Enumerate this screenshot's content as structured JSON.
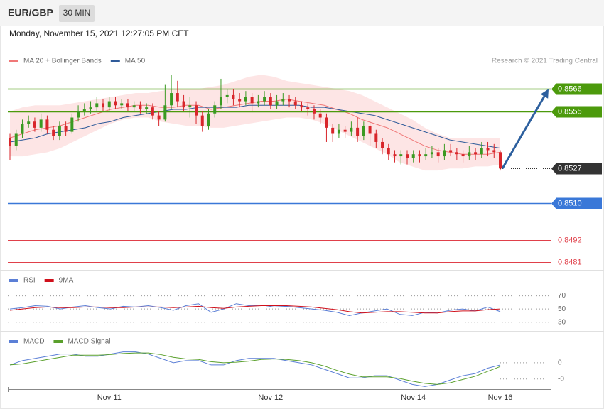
{
  "header": {
    "symbol": "EUR/GBP",
    "interval": "30 MIN",
    "datetime": "Monday, November 15, 2021 12:27:05 PM CET"
  },
  "chart_data": {
    "type": "candlestick",
    "credit": "Research © 2021 Trading Central",
    "up_color": "#3a9a22",
    "down_color": "#d8262b",
    "categories": [
      null,
      null,
      null,
      null,
      null,
      null,
      null,
      null,
      null,
      null,
      null,
      null,
      null,
      null,
      null,
      null,
      "Nov 11",
      null,
      null,
      null,
      null,
      null,
      null,
      null,
      null,
      null,
      null,
      null,
      null,
      null,
      null,
      null,
      null,
      null,
      null,
      null,
      null,
      null,
      null,
      null,
      null,
      null,
      "Nov 12",
      null,
      null,
      null,
      null,
      null,
      null,
      null,
      null,
      null,
      null,
      null,
      null,
      null,
      null,
      null,
      null,
      null,
      null,
      null,
      null,
      null,
      null,
      "Nov 14",
      null,
      null,
      null,
      null,
      null,
      null,
      null,
      null,
      null,
      null,
      null,
      null,
      null,
      "Nov 16"
    ],
    "open": [
      0.8542,
      0.8538,
      0.8544,
      0.8549,
      0.855,
      0.8547,
      0.8551,
      0.8546,
      0.8543,
      0.8548,
      0.8545,
      0.8552,
      0.8555,
      0.8556,
      0.8557,
      0.8559,
      0.8557,
      0.856,
      0.8558,
      0.8559,
      0.8557,
      0.8558,
      0.8556,
      0.8557,
      0.8553,
      0.8551,
      0.8558,
      0.8564,
      0.856,
      0.8557,
      0.8558,
      0.8553,
      0.8548,
      0.8554,
      0.8558,
      0.8562,
      0.8563,
      0.8561,
      0.856,
      0.8562,
      0.8559,
      0.856,
      0.8562,
      0.8558,
      0.856,
      0.8561,
      0.856,
      0.8558,
      0.8557,
      0.8556,
      0.8554,
      0.8552,
      0.8547,
      0.8544,
      0.8546,
      0.8545,
      0.8547,
      0.8543,
      0.8548,
      0.8544,
      0.854,
      0.8537,
      0.8534,
      0.8533,
      0.8534,
      0.8532,
      0.8534,
      0.8533,
      0.8534,
      0.8535,
      0.8533,
      0.8536,
      0.8535,
      0.8534,
      0.8533,
      0.8535,
      0.8534,
      0.8537,
      0.8536,
      0.8535
    ],
    "high": [
      0.8544,
      0.8546,
      0.8551,
      0.8553,
      0.8552,
      0.8554,
      0.8553,
      0.8548,
      0.855,
      0.855,
      0.8554,
      0.8558,
      0.8559,
      0.856,
      0.8562,
      0.8561,
      0.8562,
      0.8562,
      0.8561,
      0.8561,
      0.856,
      0.856,
      0.8559,
      0.8559,
      0.8555,
      0.8568,
      0.8573,
      0.857,
      0.8563,
      0.8562,
      0.856,
      0.8555,
      0.8556,
      0.856,
      0.8571,
      0.8566,
      0.8566,
      0.8564,
      0.8565,
      0.8564,
      0.8563,
      0.8565,
      0.8564,
      0.8563,
      0.8564,
      0.8563,
      0.8562,
      0.856,
      0.8559,
      0.8558,
      0.8556,
      0.8554,
      0.8549,
      0.8549,
      0.8548,
      0.855,
      0.8552,
      0.855,
      0.855,
      0.8546,
      0.8542,
      0.8539,
      0.8536,
      0.8536,
      0.8536,
      0.8536,
      0.8536,
      0.8537,
      0.8538,
      0.8537,
      0.8539,
      0.8539,
      0.8537,
      0.8536,
      0.8538,
      0.8537,
      0.854,
      0.854,
      0.8539,
      0.8536
    ],
    "low": [
      0.8531,
      0.8536,
      0.8542,
      0.8547,
      0.8545,
      0.8545,
      0.8544,
      0.8541,
      0.8541,
      0.8543,
      0.8544,
      0.855,
      0.8553,
      0.8554,
      0.8555,
      0.8555,
      0.8555,
      0.8556,
      0.8556,
      0.8555,
      0.8555,
      0.8554,
      0.8554,
      0.8551,
      0.8548,
      0.855,
      0.8556,
      0.8557,
      0.8555,
      0.8552,
      0.8549,
      0.8545,
      0.8546,
      0.8552,
      0.8556,
      0.8559,
      0.8558,
      0.8557,
      0.8558,
      0.8555,
      0.8557,
      0.8558,
      0.8556,
      0.8556,
      0.8558,
      0.8557,
      0.8556,
      0.8555,
      0.8553,
      0.8551,
      0.8549,
      0.854,
      0.854,
      0.8542,
      0.8542,
      0.8543,
      0.854,
      0.8541,
      0.8538,
      0.8537,
      0.8534,
      0.8531,
      0.853,
      0.8529,
      0.8529,
      0.853,
      0.853,
      0.8531,
      0.8532,
      0.853,
      0.8531,
      0.8533,
      0.8531,
      0.853,
      0.8531,
      0.8531,
      0.8532,
      0.8533,
      0.8532,
      0.8526
    ],
    "close": [
      0.8538,
      0.8544,
      0.8549,
      0.855,
      0.8547,
      0.8551,
      0.8546,
      0.8543,
      0.8548,
      0.8545,
      0.8552,
      0.8555,
      0.8556,
      0.8557,
      0.8559,
      0.8557,
      0.856,
      0.8558,
      0.8559,
      0.8557,
      0.8558,
      0.8556,
      0.8557,
      0.8553,
      0.8551,
      0.8558,
      0.8564,
      0.856,
      0.8557,
      0.8558,
      0.8553,
      0.8548,
      0.8554,
      0.8558,
      0.8562,
      0.8563,
      0.8561,
      0.856,
      0.8562,
      0.8559,
      0.856,
      0.8562,
      0.8558,
      0.856,
      0.8561,
      0.856,
      0.8558,
      0.8557,
      0.8556,
      0.8554,
      0.8552,
      0.8547,
      0.8544,
      0.8546,
      0.8545,
      0.8547,
      0.8543,
      0.8548,
      0.8544,
      0.854,
      0.8537,
      0.8534,
      0.8533,
      0.8534,
      0.8532,
      0.8534,
      0.8533,
      0.8534,
      0.8535,
      0.8533,
      0.8536,
      0.8535,
      0.8534,
      0.8533,
      0.8535,
      0.8534,
      0.8537,
      0.8536,
      0.8535,
      0.8527
    ],
    "bollinger": {
      "name": "MA 20 + Bollinger Bands",
      "color": "#f07878",
      "fill": "#fcdcdc",
      "ma": [
        0.8542,
        0.8544,
        0.8546,
        0.8547,
        0.8548,
        0.855,
        0.8552,
        0.8554,
        0.8556,
        0.8557,
        0.8558,
        0.8558,
        0.8557,
        0.8557,
        0.8558,
        0.8558,
        0.8556,
        0.8557,
        0.8558,
        0.8559,
        0.856,
        0.856,
        0.8561,
        0.856,
        0.8559,
        0.8558,
        0.8556,
        0.8554,
        0.8551,
        0.8549,
        0.8547,
        0.8544,
        0.8541,
        0.8538,
        0.8536,
        0.8535,
        0.8534,
        0.8534,
        0.8534,
        0.8535
      ],
      "upper": [
        0.8555,
        0.8557,
        0.8558,
        0.8558,
        0.8558,
        0.8559,
        0.856,
        0.8561,
        0.8562,
        0.8563,
        0.8564,
        0.8564,
        0.8565,
        0.8566,
        0.8566,
        0.8566,
        0.8567,
        0.8568,
        0.857,
        0.8572,
        0.8573,
        0.8572,
        0.857,
        0.8569,
        0.8568,
        0.8567,
        0.8566,
        0.8565,
        0.8563,
        0.856,
        0.8557,
        0.8554,
        0.8551,
        0.8547,
        0.8544,
        0.8542,
        0.8542,
        0.8542,
        0.8542,
        0.8542
      ],
      "lower": [
        0.8533,
        0.8533,
        0.8534,
        0.8535,
        0.8537,
        0.854,
        0.8543,
        0.8546,
        0.8549,
        0.8551,
        0.8552,
        0.8552,
        0.855,
        0.8549,
        0.8548,
        0.8548,
        0.8547,
        0.8547,
        0.8548,
        0.8549,
        0.855,
        0.8551,
        0.8552,
        0.8552,
        0.8551,
        0.8549,
        0.8546,
        0.8543,
        0.854,
        0.8537,
        0.8534,
        0.853,
        0.8528,
        0.8526,
        0.8526,
        0.8527,
        0.8527,
        0.8528,
        0.8528,
        0.8529
      ]
    },
    "ma50": {
      "name": "MA 50",
      "color": "#2f5b9a",
      "values": [
        0.854,
        0.8541,
        0.8542,
        0.8544,
        0.8545,
        0.8546,
        0.8547,
        0.8549,
        0.855,
        0.8552,
        0.8553,
        0.8554,
        0.8555,
        0.8556,
        0.8556,
        0.8557,
        0.8557,
        0.8557,
        0.8557,
        0.8558,
        0.8558,
        0.8558,
        0.8558,
        0.8558,
        0.8557,
        0.8557,
        0.8556,
        0.8555,
        0.8554,
        0.8553,
        0.8551,
        0.8549,
        0.8547,
        0.8545,
        0.8543,
        0.8541,
        0.854,
        0.8539,
        0.8538,
        0.8537
      ]
    },
    "ylim": [
      0.8478,
      0.8587
    ],
    "levels": [
      {
        "value": 0.8566,
        "color": "#4c9a0c",
        "boxed": true
      },
      {
        "value": 0.8555,
        "color": "#4c9a0c",
        "boxed": true
      },
      {
        "value": 0.8527,
        "color": "#333333",
        "boxed": true
      },
      {
        "value": 0.851,
        "label": "0.8510",
        "color": "#3a78d8",
        "boxed": true
      },
      {
        "value": 0.8492,
        "color": "#e0404a",
        "boxed": false
      },
      {
        "value": 0.8481,
        "color": "#e0404a",
        "boxed": false
      }
    ],
    "forecast_color": "#2c5f9e",
    "rsi": {
      "type": "line",
      "ylim": [
        20,
        90
      ],
      "yticks": [
        70,
        50,
        30
      ],
      "series": [
        {
          "name": "RSI",
          "color": "#5b7fd6",
          "values": [
            50,
            52,
            55,
            54,
            50,
            53,
            55,
            52,
            50,
            54,
            53,
            55,
            52,
            48,
            55,
            58,
            45,
            50,
            58,
            55,
            56,
            53,
            54,
            52,
            50,
            48,
            45,
            40,
            44,
            47,
            50,
            42,
            40,
            45,
            44,
            48,
            50,
            47,
            53,
            46
          ]
        },
        {
          "name": "9MA",
          "color": "#d0101b",
          "values": [
            48,
            50,
            52,
            53,
            52,
            52,
            53,
            53,
            52,
            52,
            53,
            53,
            53,
            52,
            53,
            54,
            52,
            51,
            53,
            54,
            55,
            55,
            55,
            54,
            53,
            51,
            49,
            46,
            44,
            45,
            46,
            46,
            45,
            44,
            44,
            46,
            47,
            47,
            49,
            50
          ]
        }
      ]
    },
    "macd": {
      "type": "line",
      "ylim": [
        -0.0005,
        0.0003
      ],
      "yticks": [
        0,
        {
          "value": -0.0003,
          "label": "-0"
        }
      ],
      "series": [
        {
          "name": "MACD",
          "color": "#5b7fd6",
          "values": [
            -4e-05,
            4e-05,
            8e-05,
            0.00012,
            0.00016,
            0.00016,
            0.00012,
            0.00012,
            0.00016,
            0.0002,
            0.0002,
            0.00016,
            8e-05,
            0,
            4e-05,
            4e-05,
            -4e-05,
            -4e-05,
            4e-05,
            8e-05,
            8e-05,
            8e-05,
            4e-05,
            0,
            -4e-05,
            -0.00012,
            -0.0002,
            -0.00028,
            -0.00028,
            -0.00024,
            -0.00024,
            -0.00032,
            -0.0004,
            -0.00044,
            -0.0004,
            -0.00032,
            -0.00024,
            -0.0002,
            -0.0001,
            -4e-05
          ]
        },
        {
          "name": "MACD Signal",
          "color": "#5aa02c",
          "values": [
            -4e-05,
            -2e-05,
            2e-05,
            6e-05,
            0.0001,
            0.00014,
            0.00014,
            0.00014,
            0.00015,
            0.00017,
            0.00018,
            0.00018,
            0.00015,
            0.0001,
            7e-05,
            6e-05,
            2e-05,
            0,
            1e-05,
            3e-05,
            6e-05,
            7e-05,
            6e-05,
            4e-05,
            0,
            -6e-05,
            -0.00014,
            -0.00021,
            -0.00026,
            -0.00026,
            -0.00026,
            -0.00029,
            -0.00034,
            -0.00038,
            -0.0004,
            -0.00037,
            -0.00031,
            -0.00025,
            -0.00016,
            -7e-05
          ]
        }
      ]
    }
  }
}
